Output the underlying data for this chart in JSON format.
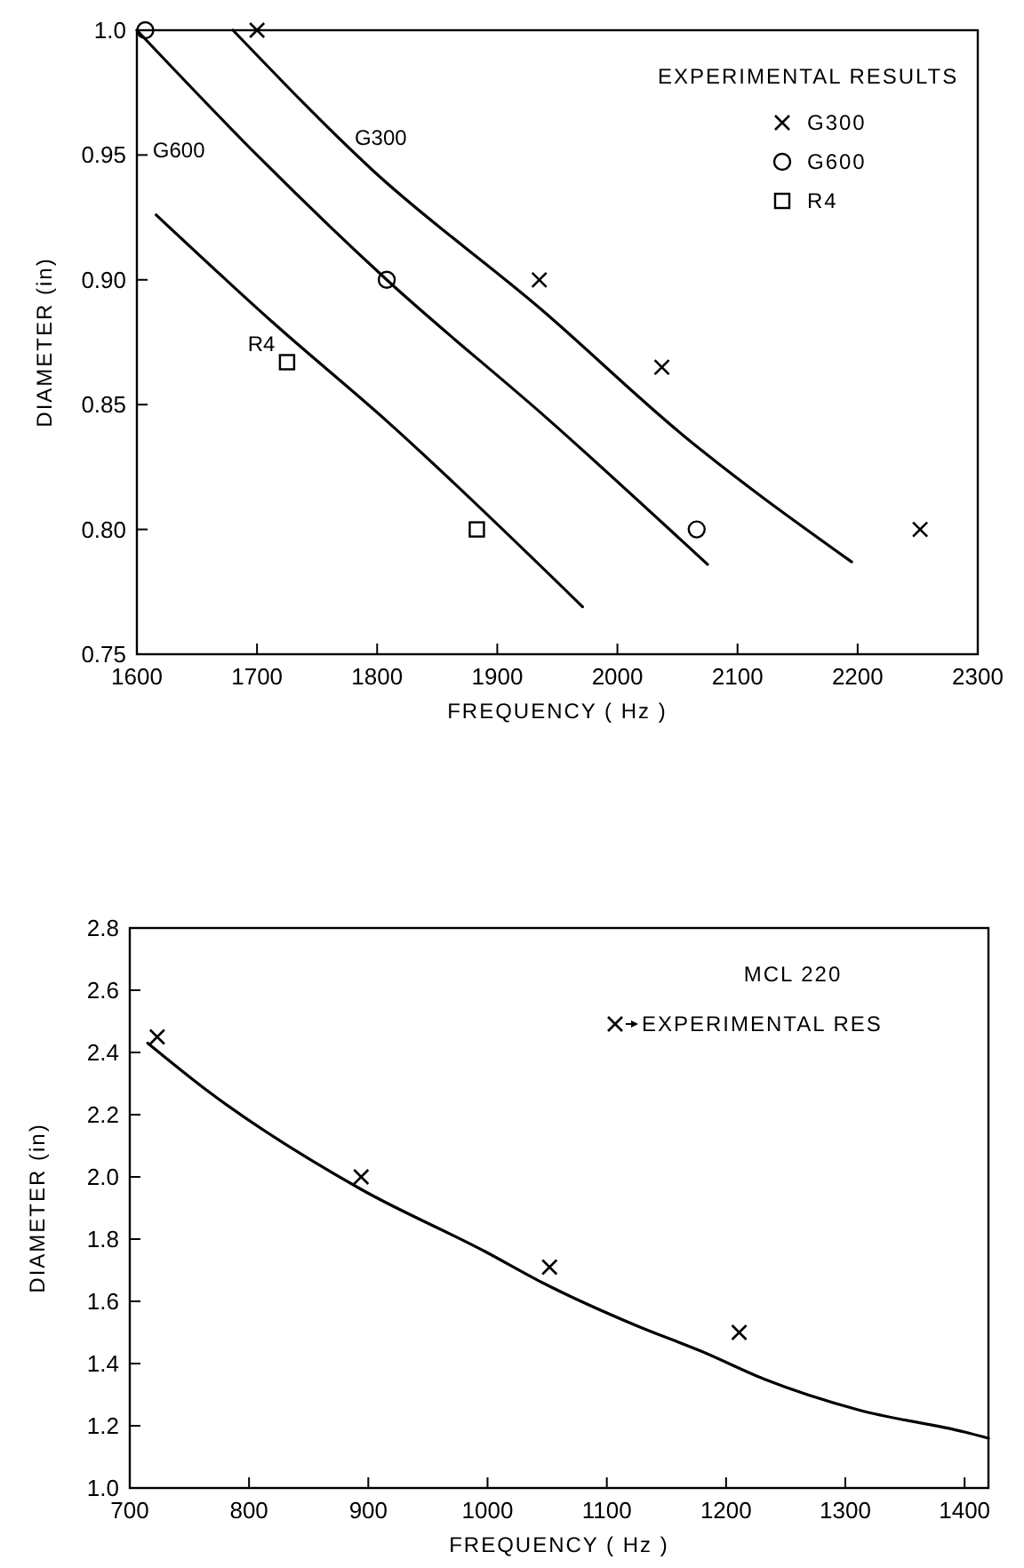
{
  "chart_data": [
    {
      "type": "line",
      "xlabel": "FREQUENCY ( Hz )",
      "ylabel": "DIAMETER (in)",
      "legend_title": "EXPERIMENTAL RESULTS",
      "legend": "top right",
      "grid": false,
      "xlim": [
        1600,
        2300
      ],
      "xticks": [
        1600,
        1700,
        1800,
        1900,
        2000,
        2100,
        2200,
        2300
      ],
      "ylim": [
        0.75,
        1.0
      ],
      "yticks": [
        {
          "value": 0.75,
          "label": "0.75"
        },
        {
          "value": 0.8,
          "label": "0.80"
        },
        {
          "value": 0.85,
          "label": "0.85"
        },
        {
          "value": 0.9,
          "label": "0.90"
        },
        {
          "value": 0.95,
          "label": "0.95"
        },
        {
          "value": 1.0,
          "label": "1.0"
        }
      ],
      "series": [
        {
          "name": "G300",
          "color": "#000000",
          "x": [
            1680,
            1796,
            1937,
            2054,
            2195
          ],
          "values": [
            1.0,
            0.944,
            0.888,
            0.838,
            0.787
          ]
        },
        {
          "name": "G600",
          "color": "#000000",
          "x": [
            1600,
            1702,
            1808,
            1945,
            2075
          ],
          "values": [
            1.0,
            0.949,
            0.9,
            0.843,
            0.786
          ]
        },
        {
          "name": "R4",
          "color": "#000000",
          "x": [
            1616,
            1713,
            1809,
            1971
          ],
          "values": [
            0.926,
            0.883,
            0.843,
            0.769
          ]
        },
        {
          "type": "scatter",
          "name": "G300",
          "color": "#000000",
          "marker": "cross",
          "x": [
            1700,
            1935,
            2037,
            2252
          ],
          "values": [
            1.0,
            0.9,
            0.865,
            0.8
          ]
        },
        {
          "type": "scatter",
          "name": "G600",
          "color": "#000000",
          "marker": "circle",
          "x": [
            1607,
            1808,
            2066
          ],
          "values": [
            1.0,
            0.9,
            0.8
          ]
        },
        {
          "type": "scatter",
          "name": "R4",
          "color": "#000000",
          "marker": "square",
          "x": [
            1725,
            1883
          ],
          "values": [
            0.867,
            0.8
          ]
        }
      ]
    },
    {
      "type": "line",
      "xlabel": "FREQUENCY ( Hz )",
      "ylabel": "DIAMETER (in)",
      "legend_title": "MCL 220",
      "legend": "top right",
      "grid": false,
      "xlim": [
        700,
        1420
      ],
      "xticks": [
        700,
        800,
        900,
        1000,
        1100,
        1200,
        1300,
        1400
      ],
      "ylim": [
        1.0,
        2.8
      ],
      "yticks": [
        {
          "value": 1.0,
          "label": "1.0"
        },
        {
          "value": 1.2,
          "label": "1.2"
        },
        {
          "value": 1.4,
          "label": "1.4"
        },
        {
          "value": 1.6,
          "label": "1.6"
        },
        {
          "value": 1.8,
          "label": "1.8"
        },
        {
          "value": 2.0,
          "label": "2.0"
        },
        {
          "value": 2.2,
          "label": "2.2"
        },
        {
          "value": 2.4,
          "label": "2.4"
        },
        {
          "value": 2.6,
          "label": "2.6"
        },
        {
          "value": 2.8,
          "label": "2.8"
        }
      ],
      "series": [
        {
          "color": "#000000",
          "x": [
            715,
            764,
            894,
            998,
            1046,
            1126,
            1179,
            1232,
            1312,
            1400,
            1420
          ],
          "values": [
            2.43,
            2.28,
            1.96,
            1.76,
            1.66,
            1.52,
            1.44,
            1.35,
            1.25,
            1.18,
            1.16
          ]
        },
        {
          "type": "scatter",
          "name": "EXPERIMENTAL RES",
          "color": "#000000",
          "marker": "cross",
          "x": [
            723,
            894,
            1052,
            1211
          ],
          "values": [
            2.45,
            2.0,
            1.71,
            1.5
          ]
        }
      ]
    }
  ]
}
